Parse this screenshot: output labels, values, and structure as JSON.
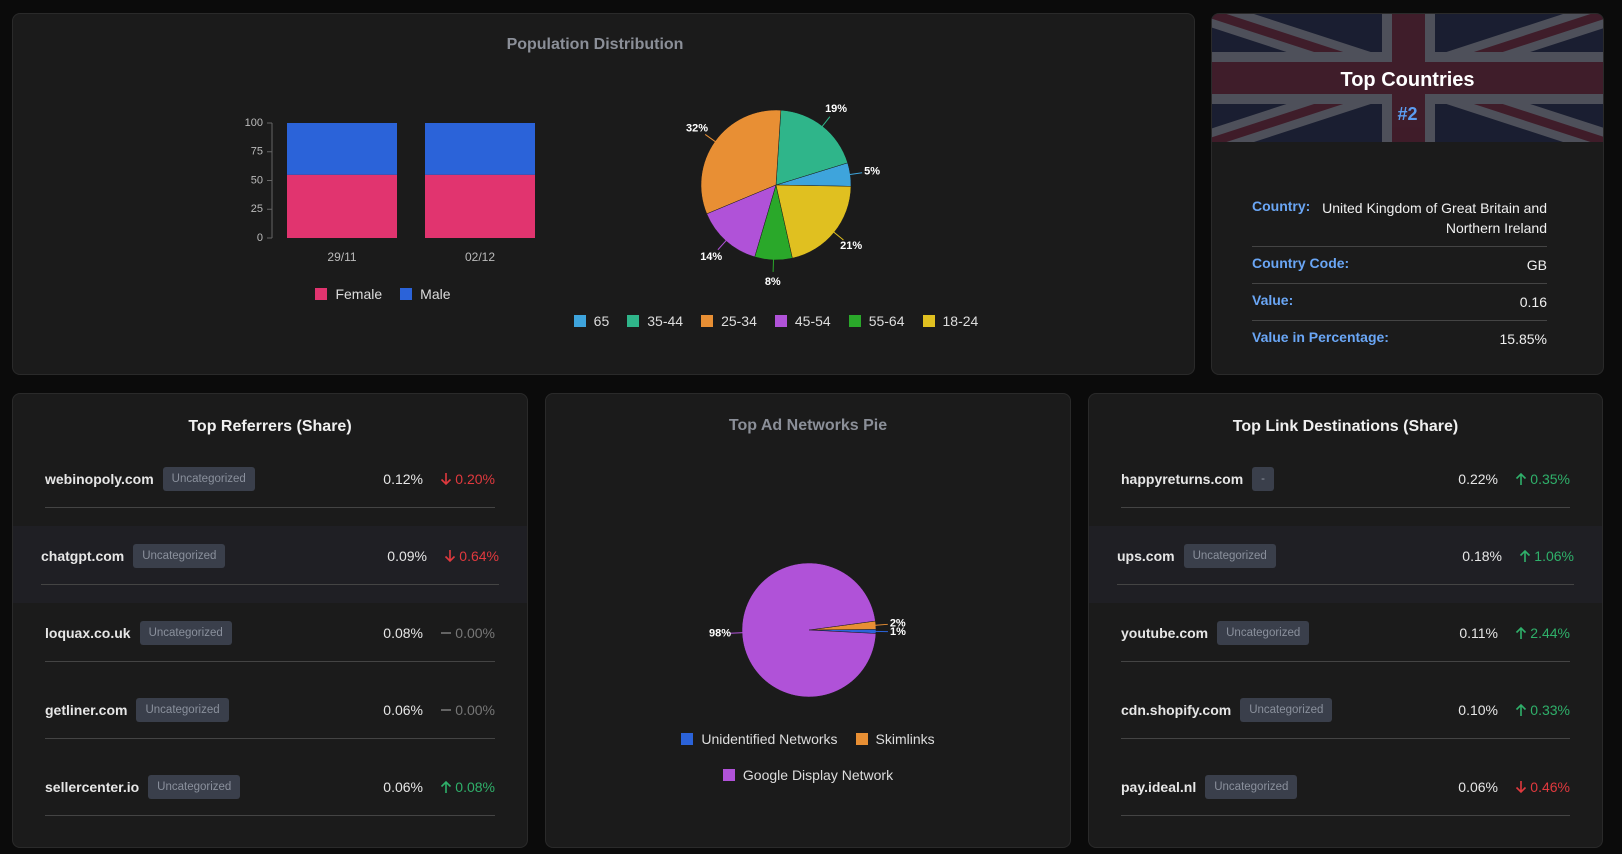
{
  "chart_data": [
    {
      "type": "bar",
      "stacked": true,
      "title": "Population Distribution",
      "categories": [
        "29/11",
        "02/12"
      ],
      "series": [
        {
          "name": "Female",
          "color": "#e1346f",
          "values": [
            55,
            55
          ]
        },
        {
          "name": "Male",
          "color": "#2b63d9",
          "values": [
            45,
            45
          ]
        }
      ],
      "ylim": [
        0,
        100
      ],
      "yticks": [
        0,
        25,
        50,
        75,
        100
      ]
    },
    {
      "type": "pie",
      "categories": [
        "65",
        "35-44",
        "25-34",
        "45-54",
        "55-64",
        "18-24"
      ],
      "values": [
        5,
        19,
        32,
        14,
        8,
        21
      ],
      "value_labels": [
        "5%",
        "19%",
        "32%",
        "14%",
        "8%",
        "21%"
      ],
      "colors": [
        "#3ea4dc",
        "#2fb58a",
        "#e88f34",
        "#b052d8",
        "#2aa82a",
        "#e0c020"
      ]
    },
    {
      "type": "pie",
      "title": "Top Ad Networks Pie",
      "categories": [
        "Unidentified Networks",
        "Skimlinks",
        "Google Display Network"
      ],
      "values": [
        1,
        2,
        98
      ],
      "value_labels": [
        "1%",
        "2%",
        "98%"
      ],
      "colors": [
        "#2b63d9",
        "#e88f34",
        "#b052d8"
      ]
    }
  ],
  "countries": {
    "title": "Top Countries",
    "rank": "#2",
    "rows": [
      {
        "label": "Country:",
        "value": "United Kingdom of Great Britain and Northern Ireland"
      },
      {
        "label": "Country Code:",
        "value": "GB"
      },
      {
        "label": "Value:",
        "value": "0.16"
      },
      {
        "label": "Value in Percentage:",
        "value": "15.85%"
      }
    ]
  },
  "referrers": {
    "title": "Top Referrers (Share)",
    "items": [
      {
        "name": "webinopoly.com",
        "tag": "Uncategorized",
        "share": "0.12%",
        "change": "0.20%",
        "trend": "down"
      },
      {
        "name": "chatgpt.com",
        "tag": "Uncategorized",
        "share": "0.09%",
        "change": "0.64%",
        "trend": "down"
      },
      {
        "name": "loquax.co.uk",
        "tag": "Uncategorized",
        "share": "0.08%",
        "change": "0.00%",
        "trend": "flat"
      },
      {
        "name": "getliner.com",
        "tag": "Uncategorized",
        "share": "0.06%",
        "change": "0.00%",
        "trend": "flat"
      },
      {
        "name": "sellercenter.io",
        "tag": "Uncategorized",
        "share": "0.06%",
        "change": "0.08%",
        "trend": "up"
      }
    ]
  },
  "destinations": {
    "title": "Top Link Destinations (Share)",
    "items": [
      {
        "name": "happyreturns.com",
        "tag": "-",
        "share": "0.22%",
        "change": "0.35%",
        "trend": "up"
      },
      {
        "name": "ups.com",
        "tag": "Uncategorized",
        "share": "0.18%",
        "change": "1.06%",
        "trend": "up"
      },
      {
        "name": "youtube.com",
        "tag": "Uncategorized",
        "share": "0.11%",
        "change": "2.44%",
        "trend": "up"
      },
      {
        "name": "cdn.shopify.com",
        "tag": "Uncategorized",
        "share": "0.10%",
        "change": "0.33%",
        "trend": "up"
      },
      {
        "name": "pay.ideal.nl",
        "tag": "Uncategorized",
        "share": "0.06%",
        "change": "0.46%",
        "trend": "down"
      }
    ]
  }
}
